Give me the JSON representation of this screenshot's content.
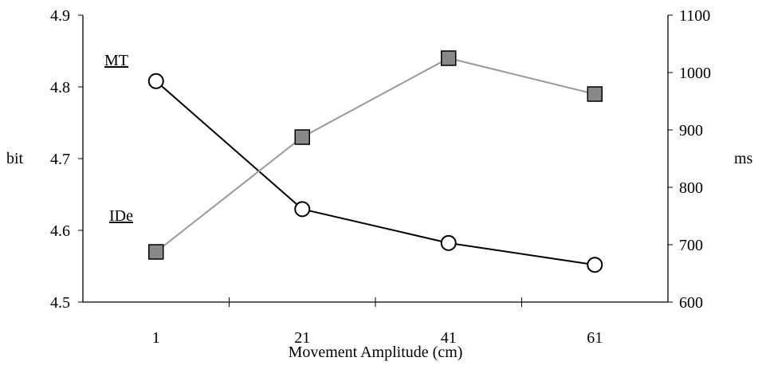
{
  "chart_data": {
    "type": "line",
    "categories": [
      "1",
      "21",
      "41",
      "61"
    ],
    "x": [
      1,
      21,
      41,
      61
    ],
    "xlabel": "Movement Amplitude (cm)",
    "left_axis": {
      "label": "bit",
      "ylim": [
        4.5,
        4.9
      ],
      "ticks": [
        "4.5",
        "4.6",
        "4.7",
        "4.8",
        "4.9"
      ]
    },
    "right_axis": {
      "label": "ms",
      "ylim": [
        600,
        1100
      ],
      "ticks": [
        "600",
        "700",
        "800",
        "900",
        "1000",
        "1100"
      ]
    },
    "series": [
      {
        "name": "MT",
        "axis": "right",
        "marker": "circle",
        "color": "#000000",
        "values": [
          985,
          762,
          703,
          665
        ]
      },
      {
        "name": "IDe",
        "axis": "left",
        "marker": "square",
        "color": "#999999",
        "marker_fill": "#888888",
        "values": [
          4.57,
          4.73,
          4.84,
          4.79
        ]
      }
    ],
    "grid": false,
    "legend": "inline labels"
  }
}
